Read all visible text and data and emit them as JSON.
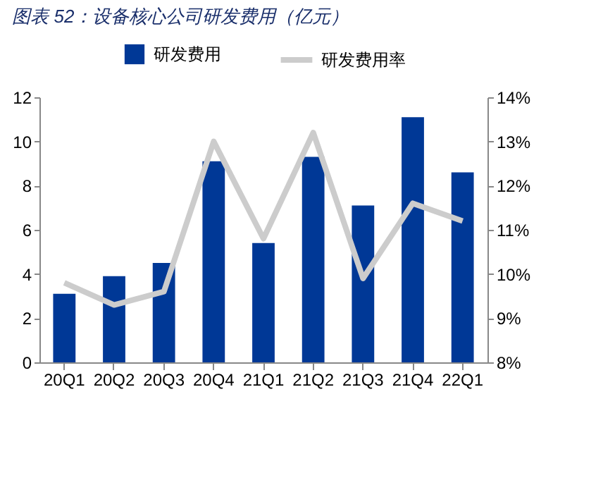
{
  "chart_data": {
    "type": "bar",
    "title": "图表 52：设备核心公司研发费用（亿元）",
    "categories": [
      "20Q1",
      "20Q2",
      "20Q3",
      "20Q4",
      "21Q1",
      "21Q2",
      "21Q3",
      "21Q4",
      "22Q1"
    ],
    "series": [
      {
        "name": "研发费用",
        "color": "#003896",
        "values": [
          3.1,
          3.9,
          4.5,
          9.1,
          5.4,
          9.3,
          7.1,
          11.1,
          8.6
        ]
      },
      {
        "name": "研发费用率",
        "type": "line",
        "axis": "y2",
        "color": "#cccccc",
        "values": [
          9.8,
          9.3,
          9.6,
          13.0,
          10.8,
          13.2,
          9.9,
          11.6,
          11.2
        ]
      }
    ],
    "ylim": [
      0,
      12
    ],
    "yticks": [
      0,
      2,
      4,
      6,
      8,
      10,
      12
    ],
    "y2lim": [
      8,
      14
    ],
    "y2ticks": [
      {
        "value": 8,
        "label": "8%"
      },
      {
        "value": 9,
        "label": "9%"
      },
      {
        "value": 10,
        "label": "10%"
      },
      {
        "value": 11,
        "label": "11%"
      },
      {
        "value": 12,
        "label": "12%"
      },
      {
        "value": 13,
        "label": "13%"
      },
      {
        "value": 14,
        "label": "14%"
      }
    ],
    "legend": "top",
    "grid": false,
    "marker": "none",
    "line_style": "solid"
  }
}
